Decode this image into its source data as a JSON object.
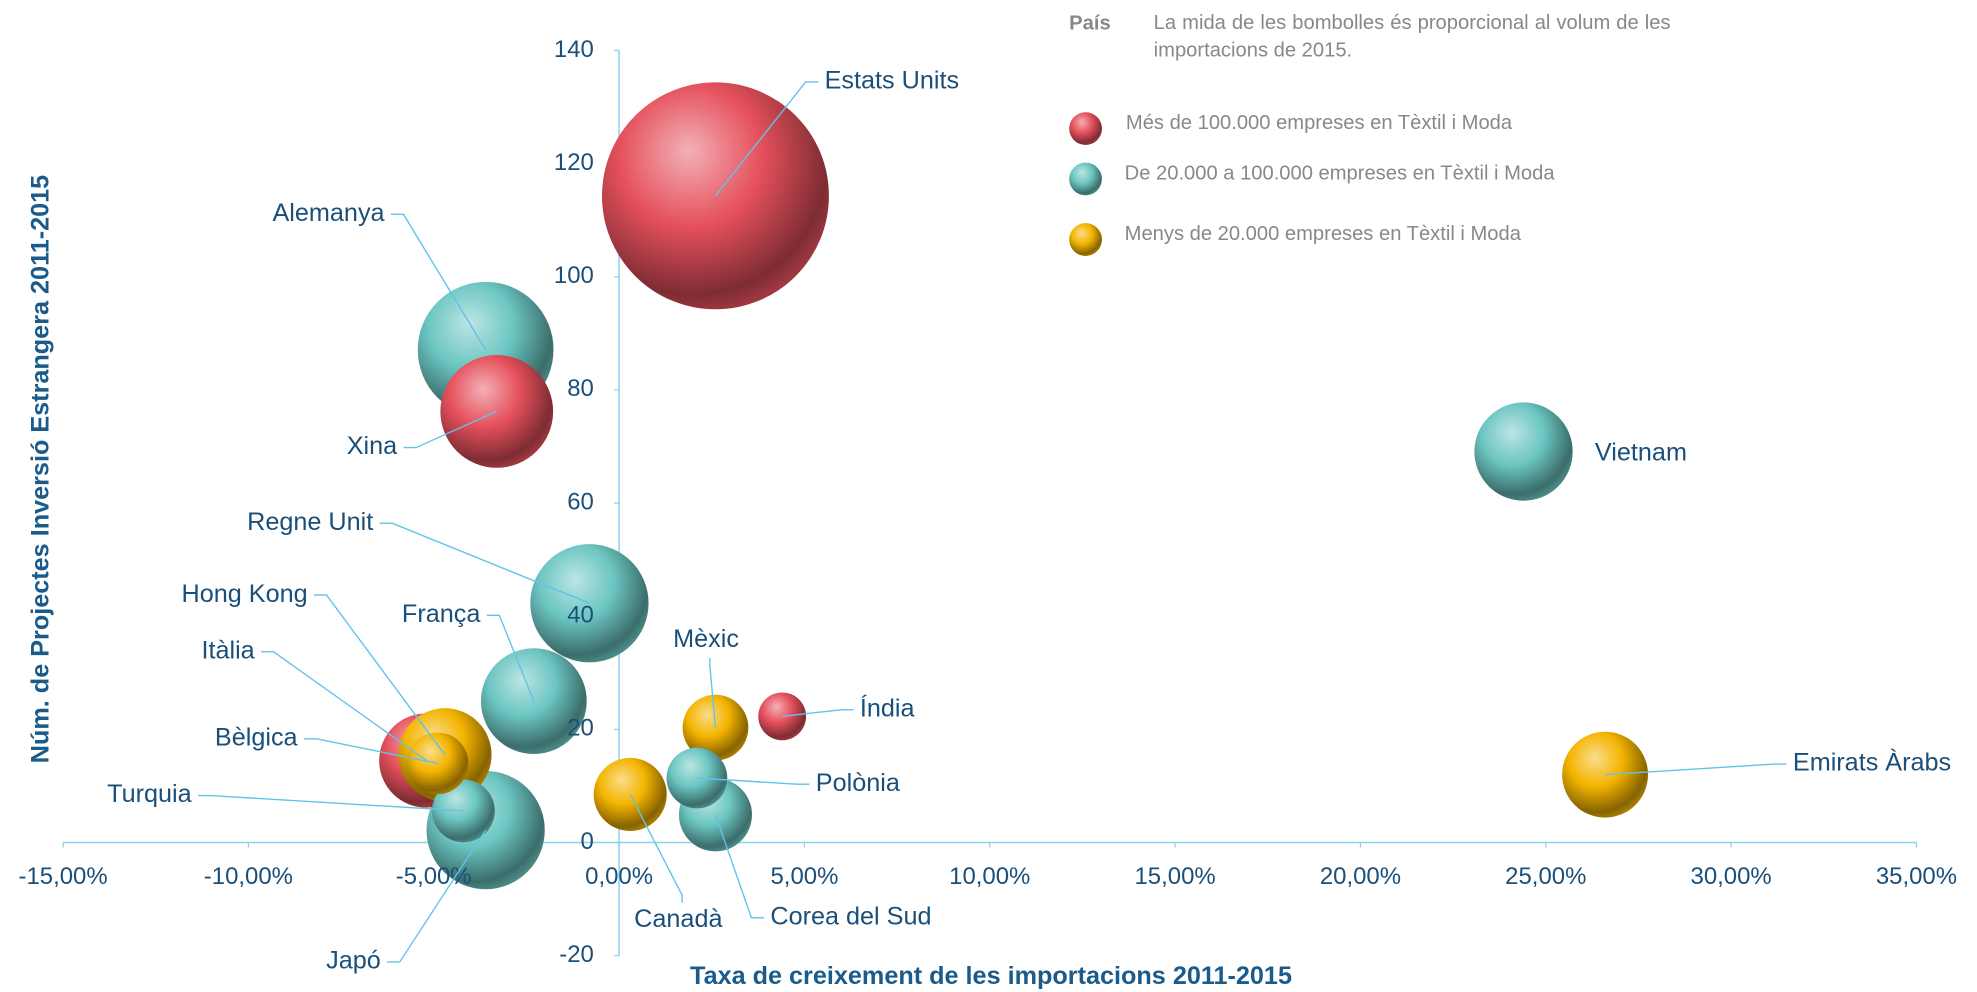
{
  "chart_data": {
    "type": "bubble",
    "xlabel": "Taxa de creixement de les importacions 2011-2015",
    "ylabel": "Núm. de Projectes Inversió Estrangera 2011-2015",
    "legend_title": "País",
    "legend_note": "La mida de les bombolles és proporcional al volum de les importacions de 2015.",
    "xlim": [
      -15,
      35
    ],
    "ylim": [
      -20,
      140
    ],
    "xticks": [
      {
        "value": -15,
        "label": "-15,00%"
      },
      {
        "value": -10,
        "label": "-10,00%"
      },
      {
        "value": -5,
        "label": "-5,00%"
      },
      {
        "value": 0,
        "label": "0,00%"
      },
      {
        "value": 5,
        "label": "5,00%"
      },
      {
        "value": 10,
        "label": "10,00%"
      },
      {
        "value": 15,
        "label": "15,00%"
      },
      {
        "value": 20,
        "label": "20,00%"
      },
      {
        "value": 25,
        "label": "25,00%"
      },
      {
        "value": 30,
        "label": "30,00%"
      },
      {
        "value": 35,
        "label": "35,00%"
      }
    ],
    "yticks": [
      -20,
      0,
      20,
      40,
      60,
      80,
      100,
      120,
      140
    ],
    "series": [
      {
        "name": "Més de 100.000 empreses en Tèxtil i Moda",
        "color": "#e5505c",
        "labels": [
          "Estats Units",
          "Xina",
          "Itàlia",
          "Índia"
        ],
        "x": [
          2.6,
          -3.3,
          -5.2,
          4.4
        ],
        "values": [
          114.3,
          76.2,
          14.5,
          22.3
        ],
        "sizes": [
          81,
          20,
          14,
          3.6
        ]
      },
      {
        "name": "De 20.000 a 100.000 empreses en Tèxtil i Moda",
        "color": "#6cc6c2",
        "labels": [
          "Alemanya",
          "Regne Unit",
          "França",
          "Turquia",
          "Japó",
          "Polònia",
          "Corea del Sud",
          "Vietnam"
        ],
        "x": [
          -3.6,
          -0.8,
          -2.3,
          -4.2,
          -3.6,
          2.1,
          2.6,
          24.4
        ],
        "values": [
          87.1,
          42.3,
          25,
          5.6,
          2.2,
          11.4,
          4.9,
          69.1
        ],
        "sizes": [
          29,
          22,
          17.6,
          6.2,
          22,
          5.8,
          8.4,
          15.2
        ]
      },
      {
        "name": "Menys de 20.000 empreses en Tèxtil i Moda",
        "color": "#f4b400",
        "labels": [
          "Hong Kong",
          "Bèlgica",
          "Mèxic",
          "Canadà",
          "Emirats Àrabs"
        ],
        "x": [
          -4.7,
          -4.9,
          2.6,
          0.3,
          26.6
        ],
        "values": [
          15.5,
          14,
          20.3,
          8.5,
          12
        ],
        "sizes": [
          13.7,
          6,
          6.8,
          8.4,
          11.6
        ]
      }
    ]
  }
}
